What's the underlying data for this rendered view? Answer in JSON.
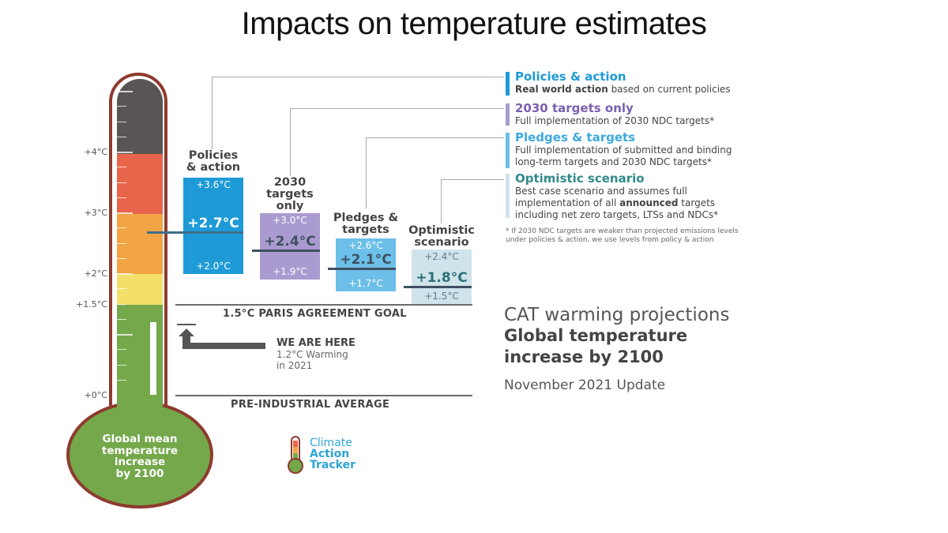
{
  "slide": {
    "title": "Impacts on temperature estimates"
  },
  "colors": {
    "policies": "#1e9ad6",
    "targets_2030": "#a99bd0",
    "pledges": "#6cbfe8",
    "optimistic": "#cfe3ea",
    "thermo_grey": "#5a5555",
    "thermo_red": "#e8644a",
    "thermo_orange": "#f2a444",
    "thermo_yellow": "#f3df6a",
    "thermo_green": "#74a84a",
    "thermo_outline": "#8e3a2e"
  },
  "thermometer": {
    "bulb_label": [
      "Global mean",
      "temperature",
      "increase",
      "by 2100"
    ],
    "scale_labels": [
      "+4°C",
      "+3°C",
      "+2°C",
      "+1.5°C",
      "+0°C"
    ]
  },
  "chart_data": {
    "type": "bar",
    "title": "Global temperature increase by 2100",
    "unit": "°C",
    "scenarios": [
      {
        "key": "policies",
        "header": [
          "Policies",
          "& action"
        ],
        "high": "+3.6°C",
        "central": "+2.7°C",
        "low": "+2.0°C",
        "values": {
          "high": 3.6,
          "central": 2.7,
          "low": 2.0
        }
      },
      {
        "key": "targets_2030",
        "header": [
          "2030",
          "targets",
          "only"
        ],
        "high": "+3.0°C",
        "central": "+2.4°C",
        "low": "+1.9°C",
        "values": {
          "high": 3.0,
          "central": 2.4,
          "low": 1.9
        }
      },
      {
        "key": "pledges",
        "header": [
          "Pledges &",
          "targets"
        ],
        "high": "+2.6°C",
        "central": "+2.1°C",
        "low": "+1.7°C",
        "values": {
          "high": 2.6,
          "central": 2.1,
          "low": 1.7
        }
      },
      {
        "key": "optimistic",
        "header": [
          "Optimistic",
          "scenario"
        ],
        "high": "+2.4°C",
        "central": "+1.8°C",
        "low": "+1.5°C",
        "values": {
          "high": 2.4,
          "central": 1.8,
          "low": 1.5
        }
      }
    ],
    "reference_lines": [
      {
        "label": "1.5°C PARIS AGREEMENT GOAL",
        "value": 1.5
      },
      {
        "label": "PRE-INDUSTRIAL AVERAGE",
        "value": 0
      }
    ],
    "current": {
      "value": 1.2
    }
  },
  "we_are_here": {
    "title": "WE ARE HERE",
    "sub": [
      "1.2°C Warming",
      "in 2021"
    ]
  },
  "legend": [
    {
      "key": "policies",
      "title": "Policies & action",
      "title_color": "#1e9ad6",
      "desc_parts": [
        [
          "Real world action",
          true
        ],
        [
          " based on current policies",
          false
        ]
      ]
    },
    {
      "key": "targets_2030",
      "title": "2030 targets only",
      "title_color": "#7a5fb0",
      "desc": [
        "Full implementation of 2030 NDC targets*"
      ]
    },
    {
      "key": "pledges",
      "title": "Pledges & targets",
      "title_color": "#3ea9de",
      "desc": [
        "Full implementation of submitted and binding",
        "long-term targets and 2030 NDC targets*"
      ]
    },
    {
      "key": "optimistic",
      "title": "Optimistic scenario",
      "title_color": "#2f8a8a",
      "desc_lines": [
        [
          [
            "Best case scenario and assumes full",
            false
          ]
        ],
        [
          [
            "implementation of all ",
            false
          ],
          [
            "announced",
            true
          ],
          [
            " targets",
            false
          ]
        ],
        [
          [
            "including net zero targets, LTSs and NDCs*",
            false
          ]
        ]
      ]
    }
  ],
  "footnote": [
    "* If 2030 NDC targets are weaker than projected emissions levels",
    "under policies & action, we use levels from policy & action"
  ],
  "cat_block": {
    "title": "CAT warming projections",
    "sub": [
      "Global temperature",
      "increase by 2100"
    ],
    "update": "November 2021 Update"
  },
  "logo": {
    "lines": [
      "Climate",
      "Action",
      "Tracker"
    ]
  }
}
